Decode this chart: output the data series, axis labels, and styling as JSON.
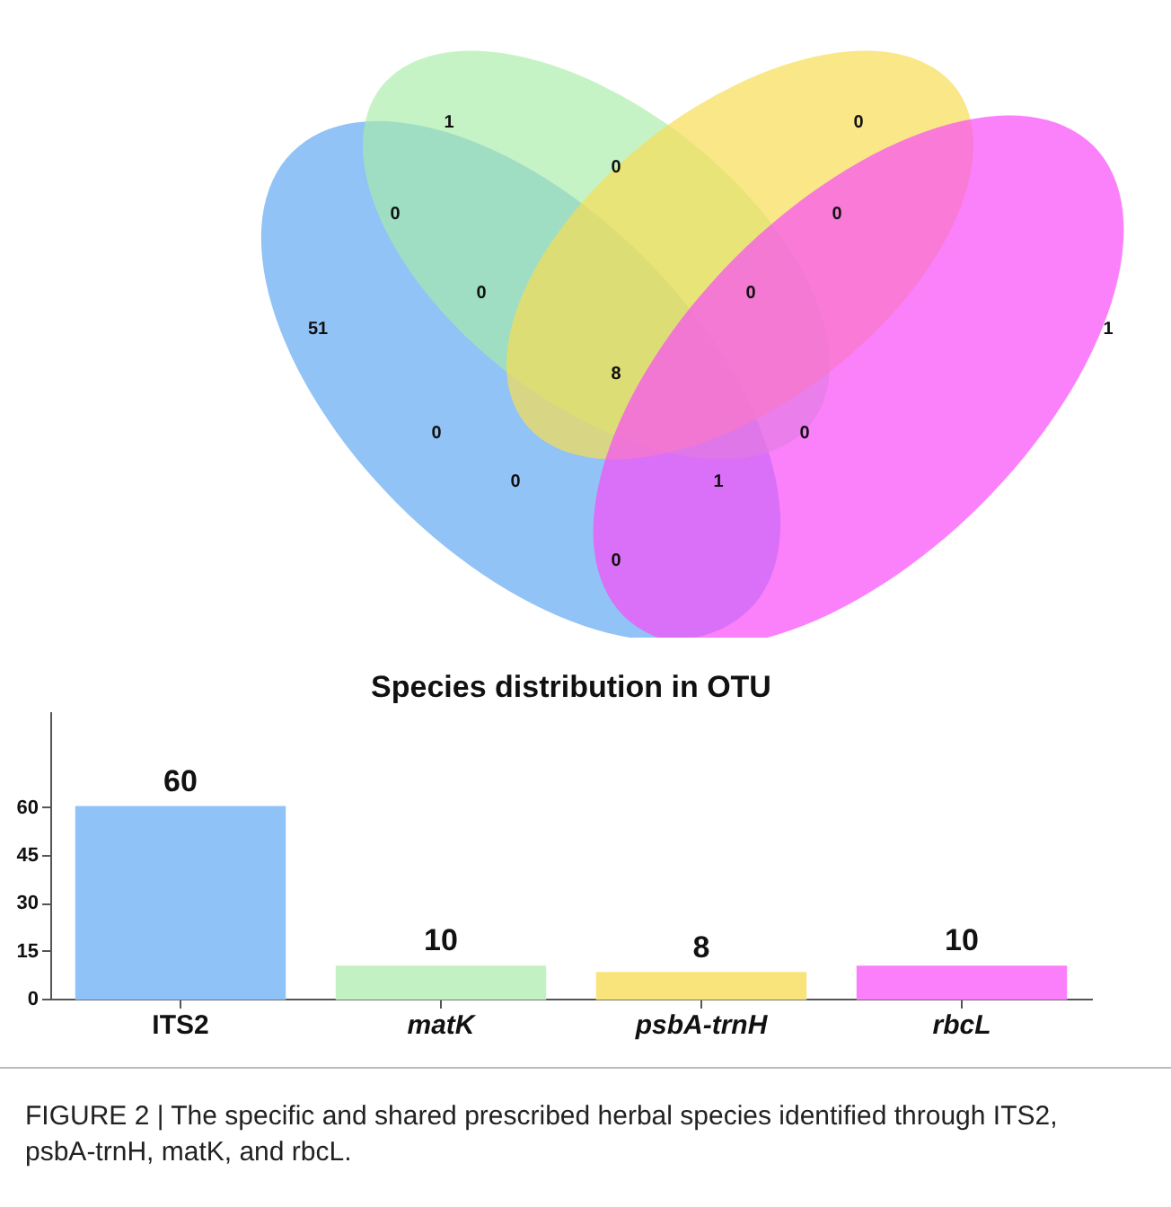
{
  "chart_data": [
    {
      "type": "other",
      "data_labels": true,
      "categories": [
        null,
        null,
        null,
        null,
        null,
        null,
        null,
        null,
        null,
        null,
        null,
        null,
        null,
        null,
        null
      ],
      "values": [
        1,
        0,
        0,
        0,
        0,
        0,
        0,
        51,
        1,
        8,
        0,
        0,
        0,
        1,
        0
      ]
    },
    {
      "type": "bar",
      "title": "Species distribution in OTU",
      "categories": [
        "ITS2",
        "matK",
        "psbA-trnH",
        "rbcL"
      ],
      "values": [
        60,
        10,
        8,
        10
      ],
      "colors": [
        "#8fc3f8",
        "#c2f2c4",
        "#f9e47c",
        "#fb7ffb"
      ],
      "ylim": [
        0,
        90
      ],
      "yticks": [
        0,
        15,
        30,
        45,
        60
      ],
      "data_labels": true,
      "grid": false,
      "legend": false,
      "annotations": [
        "FIGURE 2 | The specific and shared prescribed herbal species identified through ITS2, psbA-trnH, matK, and rbcL."
      ]
    }
  ]
}
